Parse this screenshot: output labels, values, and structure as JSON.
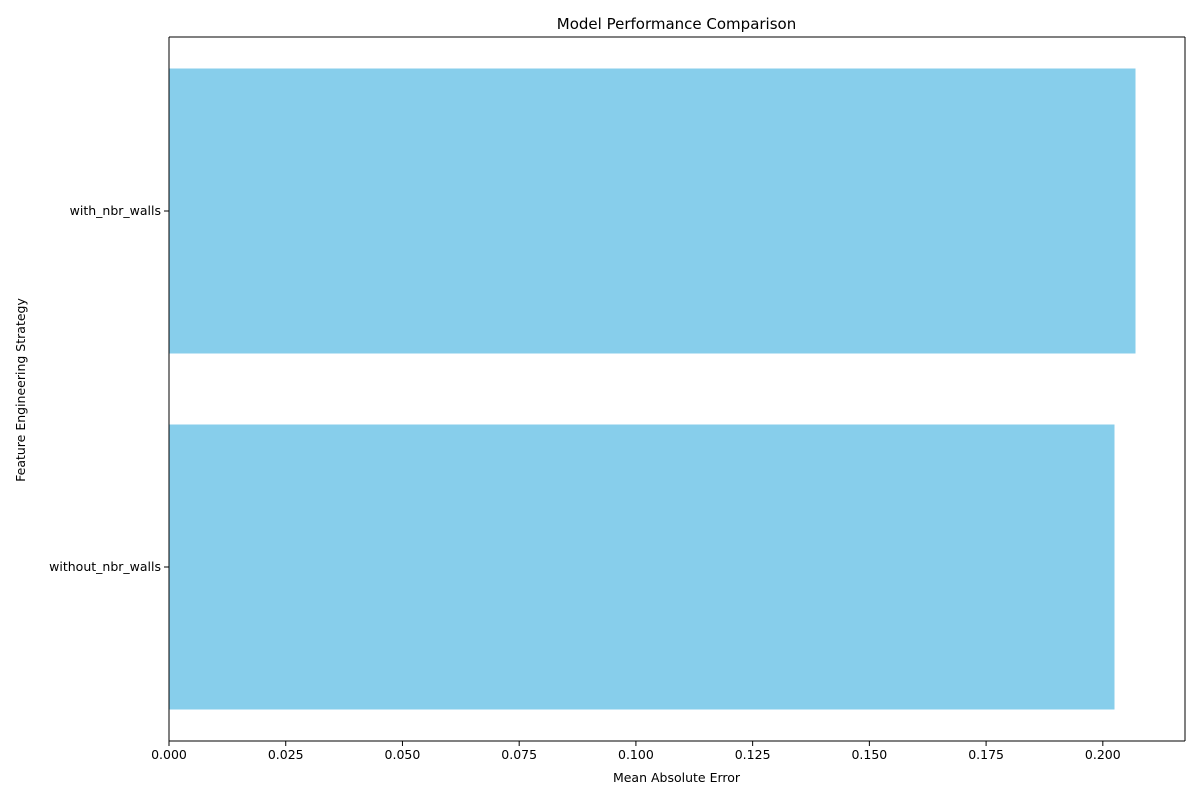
{
  "chart_data": {
    "type": "bar",
    "orientation": "horizontal",
    "title": "Model Performance Comparison",
    "xlabel": "Mean Absolute Error",
    "ylabel": "Feature Engineering Strategy",
    "categories": [
      "without_nbr_walls",
      "with_nbr_walls"
    ],
    "values": [
      0.2025,
      0.207
    ],
    "xlim": [
      0,
      0.2176
    ],
    "xticks": [
      0.0,
      0.025,
      0.05,
      0.075,
      0.1,
      0.125,
      0.15,
      0.175,
      0.2
    ],
    "xtick_labels": [
      "0.000",
      "0.025",
      "0.050",
      "0.075",
      "0.100",
      "0.125",
      "0.150",
      "0.175",
      "0.200"
    ],
    "grid": false,
    "bar_color": "#87CEEB"
  }
}
